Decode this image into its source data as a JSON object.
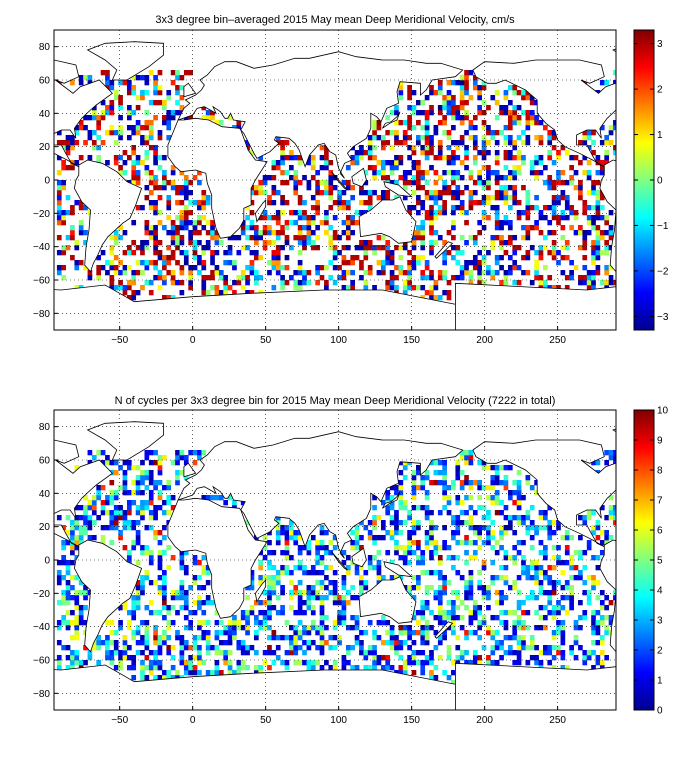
{
  "chart_data": [
    {
      "type": "heatmap",
      "title": "3x3 degree bin–averaged 2015 May mean Deep Meridional Velocity, cm/s",
      "xlabel": "",
      "ylabel": "",
      "xlim": [
        -95,
        290
      ],
      "ylim": [
        -90,
        90
      ],
      "x_ticks": [
        -50,
        0,
        50,
        100,
        150,
        200,
        250
      ],
      "y_ticks": [
        80,
        60,
        40,
        20,
        0,
        -20,
        -40,
        -60,
        -80
      ],
      "x_tick_labels": [
        "−50",
        "0",
        "50",
        "100",
        "150",
        "200",
        "250"
      ],
      "y_tick_labels": [
        "80",
        "60",
        "40",
        "20",
        "0",
        "−20",
        "−40",
        "−60",
        "−80"
      ],
      "grid": true,
      "bin_size_deg": 3,
      "colorbar": {
        "range": [
          -3.3,
          3.3
        ],
        "ticks": [
          3,
          2,
          1,
          0,
          -1,
          -2,
          -3
        ],
        "tick_labels": [
          "3",
          "2",
          "1",
          "0",
          "−1",
          "−2",
          "−3"
        ],
        "colormap": "jet"
      }
    },
    {
      "type": "heatmap",
      "title": "N of cycles per 3x3 degree bin for 2015 May mean Deep Meridional Velocity (7222 in total)",
      "xlabel": "",
      "ylabel": "",
      "xlim": [
        -95,
        290
      ],
      "ylim": [
        -90,
        90
      ],
      "x_ticks": [
        -50,
        0,
        50,
        100,
        150,
        200,
        250
      ],
      "y_ticks": [
        80,
        60,
        40,
        20,
        0,
        -20,
        -40,
        -60,
        -80
      ],
      "x_tick_labels": [
        "−50",
        "0",
        "50",
        "100",
        "150",
        "200",
        "250"
      ],
      "y_tick_labels": [
        "80",
        "60",
        "40",
        "20",
        "0",
        "−20",
        "−40",
        "−60",
        "−80"
      ],
      "grid": true,
      "bin_size_deg": 3,
      "total_cycles": 7222,
      "colorbar": {
        "range": [
          0,
          10
        ],
        "ticks": [
          10,
          9,
          8,
          7,
          6,
          5,
          4,
          3,
          2,
          1,
          0
        ],
        "tick_labels": [
          "10",
          "9",
          "8",
          "7",
          "6",
          "5",
          "4",
          "3",
          "2",
          "1",
          "0"
        ],
        "colormap": "jet"
      }
    }
  ]
}
